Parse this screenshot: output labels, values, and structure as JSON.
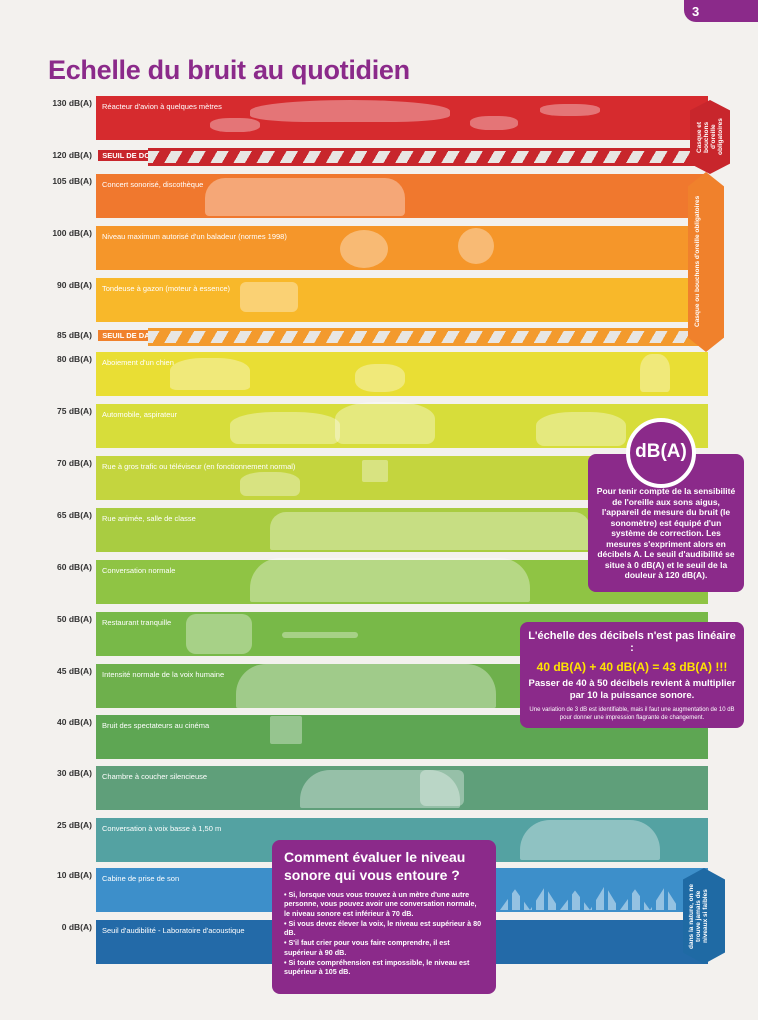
{
  "page_number": "3",
  "title": {
    "part1": "Echelle du ",
    "bold": "bruit",
    "part2": " au quotidien"
  },
  "colors": {
    "accent": "#8b2a8a",
    "yellow_text": "#ffe400"
  },
  "levels": [
    {
      "db": "130 dB(A)",
      "desc": "Réacteur d'avion à quelques mètres",
      "color": "#d62b2e"
    },
    {
      "db": "120 dB(A)",
      "tag": "SEUIL DE DOULEUR",
      "color": "#c8262c"
    },
    {
      "db": "105 dB(A)",
      "desc": "Concert sonorisé, discothèque",
      "color": "#f0782e"
    },
    {
      "db": "100 dB(A)",
      "desc": "Niveau maximum autorisé d'un baladeur (normes 1998)",
      "color": "#f5962a"
    },
    {
      "db": "90 dB(A)",
      "desc": "Tondeuse à gazon (moteur à essence)",
      "color": "#f8b82a"
    },
    {
      "db": "85 dB(A)",
      "tag": "SEUIL DE DANGER",
      "color": "#f39a2d"
    },
    {
      "db": "80 dB(A)",
      "desc": "Aboiement d'un chien",
      "color": "#e9de34"
    },
    {
      "db": "75 dB(A)",
      "desc": "Automobile, aspirateur",
      "color": "#d7dd3a"
    },
    {
      "db": "70 dB(A)",
      "desc": "Rue à gros trafic ou téléviseur (en fonctionnement normal)",
      "color": "#c4d53e"
    },
    {
      "db": "65 dB(A)",
      "desc": "Rue animée, salle de classe",
      "color": "#a9cc41"
    },
    {
      "db": "60 dB(A)",
      "desc": "Conversation normale",
      "color": "#8fc444"
    },
    {
      "db": "50 dB(A)",
      "desc": "Restaurant tranquille",
      "color": "#78b948"
    },
    {
      "db": "45 dB(A)",
      "desc": "Intensité normale de la voix humaine",
      "color": "#6eb04c"
    },
    {
      "db": "40 dB(A)",
      "desc": "Bruit des spectateurs au cinéma",
      "color": "#5ea653"
    },
    {
      "db": "30 dB(A)",
      "desc": "Chambre à coucher silencieuse",
      "color": "#5f9f7a"
    },
    {
      "db": "25 dB(A)",
      "desc": "Conversation à voix basse à 1,50 m",
      "color": "#54a2a2"
    },
    {
      "db": "10 dB(A)",
      "desc": "Cabine de prise de son",
      "color": "#3d8fca"
    },
    {
      "db": "0 dB(A)",
      "desc": "Seuil d'audibilité - Laboratoire d'acoustique",
      "color": "#236aa8"
    }
  ],
  "side_labels": {
    "red": "Casque et bouchons d'oreille obligatoires",
    "orange": "Casque ou bouchons d'oreille obligatoires",
    "blue": "dans la nature, on ne trouve jamais de niveaux si faibles"
  },
  "dba_box": {
    "badge": "dB(A)",
    "text": "Pour tenir compte de la sensibilité de l'oreille aux sons aigus, l'appareil de mesure du bruit (le sonomètre) est équipé d'un système de correction. Les mesures s'expriment alors en décibels A. Le seuil d'audibilité se situe à 0 dB(A) et le seuil de la douleur à 120 dB(A)."
  },
  "scale_box": {
    "heading": "L'échelle des décibels n'est pas linéaire :",
    "equation": "40 dB(A) + 40 dB(A) = 43 dB(A) !!!",
    "text": "Passer de 40 à 50 décibels revient à multiplier par 10 la puissance sonore.",
    "note": "Une variation de 3 dB est identifiable, mais il faut une augmentation de 10 dB pour donner une impression flagrante de changement."
  },
  "evaluate_box": {
    "heading": "Comment évaluer le niveau sonore qui vous entoure ?",
    "items": [
      "Si, lorsque vous vous trouvez à un mètre d'une autre personne, vous pouvez avoir une conversation normale, le niveau sonore est inférieur à 70 dB.",
      "Si vous devez élever la voix, le niveau est supérieur à 80 dB.",
      "S'il faut crier pour vous faire comprendre, il est supérieur à 90 dB.",
      "Si toute compréhension est impossible, le niveau est supérieur à 105 dB."
    ]
  }
}
